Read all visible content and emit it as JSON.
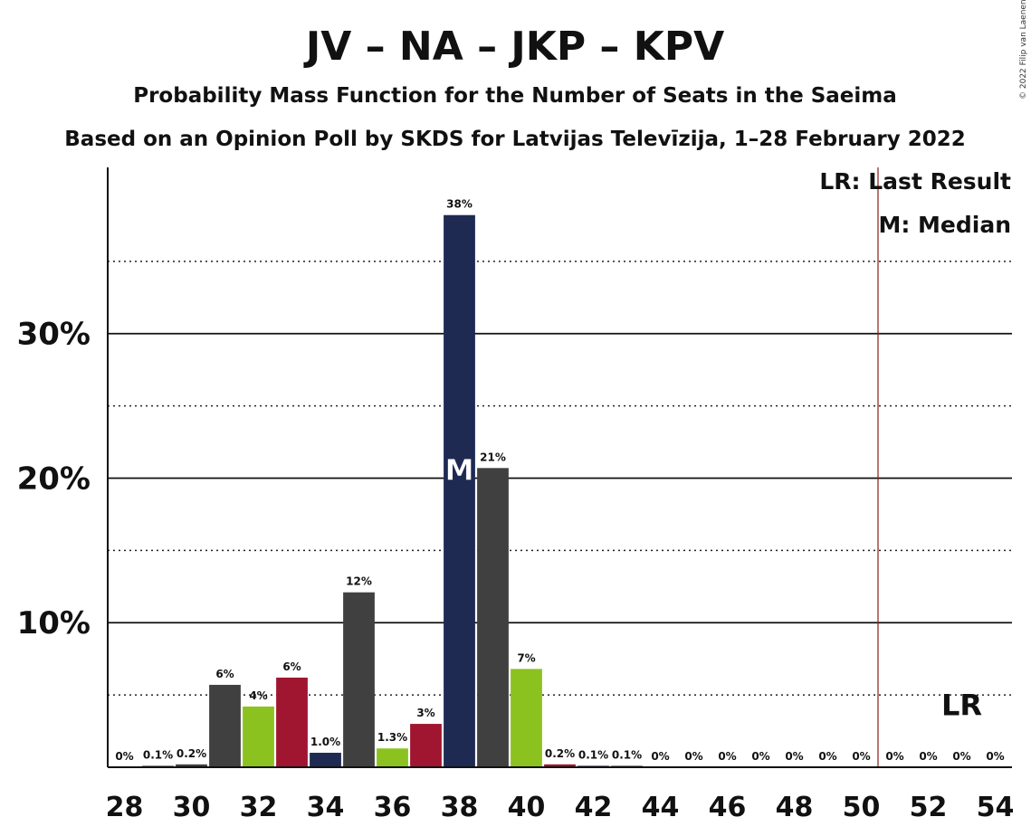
{
  "chart_data": {
    "type": "bar",
    "title": "JV – NA – JKP – KPV",
    "subtitle": "Probability Mass Function for the Number of Seats in the Saeima",
    "subtitle2": "Based on an Opinion Poll by SKDS for Latvijas Televīzija, 1–28 February 2022",
    "copyright": "© 2022 Filip van Laenen",
    "x": [
      28,
      29,
      30,
      31,
      32,
      33,
      34,
      35,
      36,
      37,
      38,
      39,
      40,
      41,
      42,
      43,
      44,
      45,
      46,
      47,
      48,
      49,
      50,
      51,
      52,
      53,
      54
    ],
    "values": [
      0,
      0.1,
      0.2,
      5.7,
      4.2,
      6.2,
      1.0,
      12.1,
      1.3,
      3.0,
      38.2,
      20.7,
      6.8,
      0.2,
      0.1,
      0.1,
      0,
      0,
      0,
      0,
      0,
      0,
      0,
      0,
      0,
      0,
      0
    ],
    "labels": [
      "0%",
      "0.1%",
      "0.2%",
      "6%",
      "4%",
      "6%",
      "1.0%",
      "12%",
      "1.3%",
      "3%",
      "38%",
      "21%",
      "7%",
      "0.2%",
      "0.1%",
      "0.1%",
      "0%",
      "0%",
      "0%",
      "0%",
      "0%",
      "0%",
      "0%",
      "0%",
      "0%",
      "0%",
      "0%"
    ],
    "colors": [
      "#404040",
      "#404040",
      "#404040",
      "#404040",
      "#8cc21f",
      "#a0152f",
      "#1e2a52",
      "#404040",
      "#8cc21f",
      "#a0152f",
      "#1e2a52",
      "#404040",
      "#8cc21f",
      "#a0152f",
      "#1e2a52",
      "#404040",
      "#8cc21f",
      "#a0152f",
      "#1e2a52",
      "#404040",
      "#8cc21f",
      "#a0152f",
      "#1e2a52",
      "#404040",
      "#8cc21f",
      "#a0152f",
      "#1e2a52"
    ],
    "x_tick_labels": [
      "28",
      "30",
      "32",
      "34",
      "36",
      "38",
      "40",
      "42",
      "44",
      "46",
      "48",
      "50",
      "52",
      "54"
    ],
    "y_tick_labels": [
      {
        "value": 10,
        "label": "10%"
      },
      {
        "value": 20,
        "label": "20%"
      },
      {
        "value": 30,
        "label": "30%"
      }
    ],
    "ylim": [
      0,
      41.5
    ],
    "xlim": [
      27.5,
      54.5
    ],
    "dotted_gridlines": [
      5,
      15,
      25,
      35
    ],
    "last_result_seat": 50.5,
    "median_seat": 38,
    "median_marker": "M",
    "lr_marker": "LR",
    "lr_marker_seat": 53,
    "lr_line_color": "#8b1a1a",
    "legend": [
      "LR: Last Result",
      "M: Median"
    ],
    "legend_placement": "top-right"
  }
}
